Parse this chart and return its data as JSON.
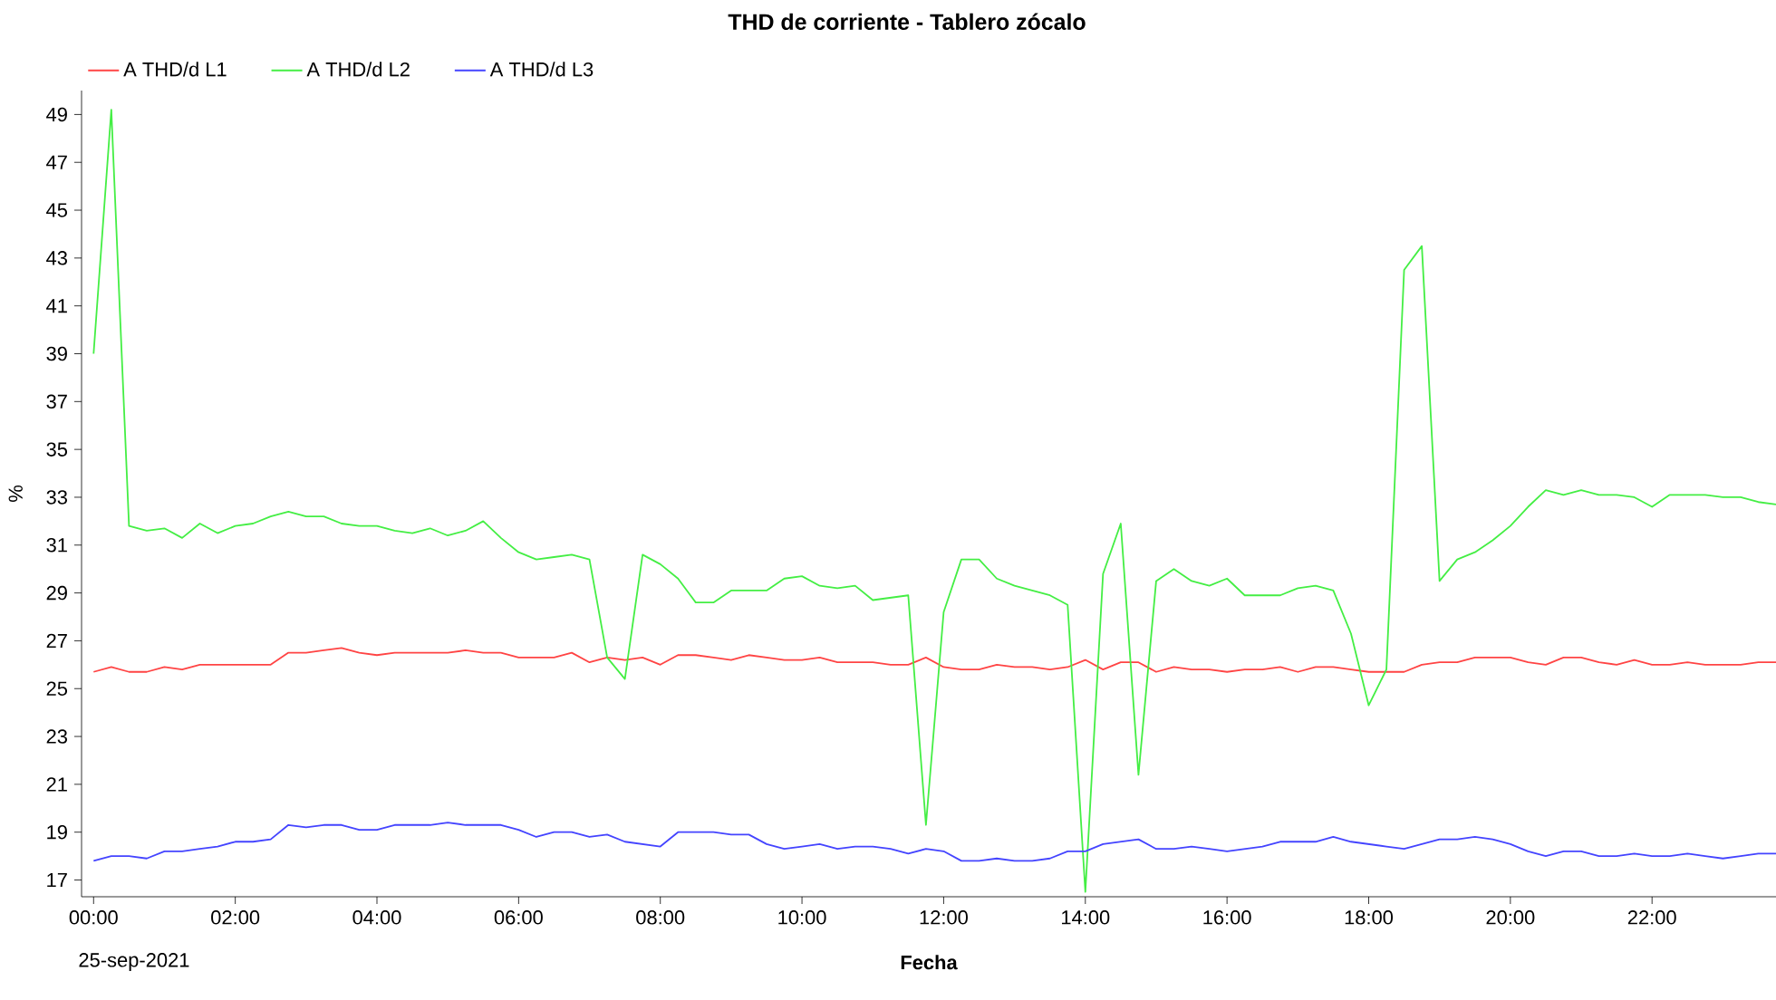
{
  "chart_data": {
    "type": "line",
    "title": "THD de corriente - Tablero zócalo",
    "xlabel": "Fecha",
    "ylabel": "%",
    "annotations": [
      "25-sep-2021"
    ],
    "legend": "top left",
    "x": [
      0,
      0.25,
      0.5,
      0.75,
      1,
      1.25,
      1.5,
      1.75,
      2,
      2.25,
      2.5,
      2.75,
      3,
      3.25,
      3.5,
      3.75,
      4,
      4.25,
      4.5,
      4.75,
      5,
      5.25,
      5.5,
      5.75,
      6,
      6.25,
      6.5,
      6.75,
      7,
      7.25,
      7.5,
      7.75,
      8,
      8.25,
      8.5,
      8.75,
      9,
      9.25,
      9.5,
      9.75,
      10,
      10.25,
      10.5,
      10.75,
      11,
      11.25,
      11.5,
      11.75,
      12,
      12.25,
      12.5,
      12.75,
      13,
      13.25,
      13.5,
      13.75,
      14,
      14.25,
      14.5,
      14.75,
      15,
      15.25,
      15.5,
      15.75,
      16,
      16.25,
      16.5,
      16.75,
      17,
      17.25,
      17.5,
      17.75,
      18,
      18.25,
      18.5,
      18.75,
      19,
      19.25,
      19.5,
      19.75,
      20,
      20.25,
      20.5,
      20.75,
      21,
      21.25,
      21.5,
      21.75,
      22,
      22.25,
      22.5,
      22.75,
      23,
      23.25,
      23.5,
      23.75
    ],
    "series": [
      {
        "name": "A THD/d L1",
        "color": "#ff4444",
        "values": [
          25.7,
          25.9,
          25.7,
          25.7,
          25.9,
          25.8,
          26.0,
          26.0,
          26.0,
          26.0,
          26.0,
          26.5,
          26.5,
          26.6,
          26.7,
          26.5,
          26.4,
          26.5,
          26.5,
          26.5,
          26.5,
          26.6,
          26.5,
          26.5,
          26.3,
          26.3,
          26.3,
          26.5,
          26.1,
          26.3,
          26.2,
          26.3,
          26.0,
          26.4,
          26.4,
          26.3,
          26.2,
          26.4,
          26.3,
          26.2,
          26.2,
          26.3,
          26.1,
          26.1,
          26.1,
          26.0,
          26.0,
          26.3,
          25.9,
          25.8,
          25.8,
          26.0,
          25.9,
          25.9,
          25.8,
          25.9,
          26.2,
          25.8,
          26.1,
          26.1,
          25.7,
          25.9,
          25.8,
          25.8,
          25.7,
          25.8,
          25.8,
          25.9,
          25.7,
          25.9,
          25.9,
          25.8,
          25.7,
          25.7,
          25.7,
          26.0,
          26.1,
          26.1,
          26.3,
          26.3,
          26.3,
          26.1,
          26.0,
          26.3,
          26.3,
          26.1,
          26.0,
          26.2,
          26.0,
          26.0,
          26.1,
          26.0,
          26.0,
          26.0,
          26.1,
          26.1
        ]
      },
      {
        "name": "A THD/d L2",
        "color": "#44ee44",
        "values": [
          39.0,
          49.2,
          31.8,
          31.6,
          31.7,
          31.3,
          31.9,
          31.5,
          31.8,
          31.9,
          32.2,
          32.4,
          32.2,
          32.2,
          31.9,
          31.8,
          31.8,
          31.6,
          31.5,
          31.7,
          31.4,
          31.6,
          32.0,
          31.3,
          30.7,
          30.4,
          30.5,
          30.6,
          30.4,
          26.3,
          25.4,
          30.6,
          30.2,
          29.6,
          28.6,
          28.6,
          29.1,
          29.1,
          29.1,
          29.6,
          29.7,
          29.3,
          29.2,
          29.3,
          28.7,
          28.8,
          28.9,
          19.3,
          28.2,
          30.4,
          30.4,
          29.6,
          29.3,
          29.1,
          28.9,
          28.5,
          16.5,
          29.8,
          31.9,
          21.4,
          29.5,
          30.0,
          29.5,
          29.3,
          29.6,
          28.9,
          28.9,
          28.9,
          29.2,
          29.3,
          29.1,
          27.3,
          24.3,
          25.8,
          42.5,
          43.5,
          29.5,
          30.4,
          30.7,
          31.2,
          31.8,
          32.6,
          33.3,
          33.1,
          33.3,
          33.1,
          33.1,
          33.0,
          32.6,
          33.1,
          33.1,
          33.1,
          33.0,
          33.0,
          32.8,
          32.7
        ]
      },
      {
        "name": "A THD/d L3",
        "color": "#4444ff",
        "values": [
          17.8,
          18.0,
          18.0,
          17.9,
          18.2,
          18.2,
          18.3,
          18.4,
          18.6,
          18.6,
          18.7,
          19.3,
          19.2,
          19.3,
          19.3,
          19.1,
          19.1,
          19.3,
          19.3,
          19.3,
          19.4,
          19.3,
          19.3,
          19.3,
          19.1,
          18.8,
          19.0,
          19.0,
          18.8,
          18.9,
          18.6,
          18.5,
          18.4,
          19.0,
          19.0,
          19.0,
          18.9,
          18.9,
          18.5,
          18.3,
          18.4,
          18.5,
          18.3,
          18.4,
          18.4,
          18.3,
          18.1,
          18.3,
          18.2,
          17.8,
          17.8,
          17.9,
          17.8,
          17.8,
          17.9,
          18.2,
          18.2,
          18.5,
          18.6,
          18.7,
          18.3,
          18.3,
          18.4,
          18.3,
          18.2,
          18.3,
          18.4,
          18.6,
          18.6,
          18.6,
          18.8,
          18.6,
          18.5,
          18.4,
          18.3,
          18.5,
          18.7,
          18.7,
          18.8,
          18.7,
          18.5,
          18.2,
          18.0,
          18.2,
          18.2,
          18.0,
          18.0,
          18.1,
          18.0,
          18.0,
          18.1,
          18.0,
          17.9,
          18.0,
          18.1,
          18.1
        ]
      }
    ],
    "xlim": [
      -0.17,
      23.75
    ],
    "ylim": [
      16.3,
      50
    ],
    "xticks": [
      {
        "value": 0,
        "label": "00:00"
      },
      {
        "value": 2,
        "label": "02:00"
      },
      {
        "value": 4,
        "label": "04:00"
      },
      {
        "value": 6,
        "label": "06:00"
      },
      {
        "value": 8,
        "label": "08:00"
      },
      {
        "value": 10,
        "label": "10:00"
      },
      {
        "value": 12,
        "label": "12:00"
      },
      {
        "value": 14,
        "label": "14:00"
      },
      {
        "value": 16,
        "label": "16:00"
      },
      {
        "value": 18,
        "label": "18:00"
      },
      {
        "value": 20,
        "label": "20:00"
      },
      {
        "value": 22,
        "label": "22:00"
      }
    ],
    "yticks": [
      17,
      19,
      21,
      23,
      25,
      27,
      29,
      31,
      33,
      35,
      37,
      39,
      41,
      43,
      45,
      47,
      49
    ]
  }
}
